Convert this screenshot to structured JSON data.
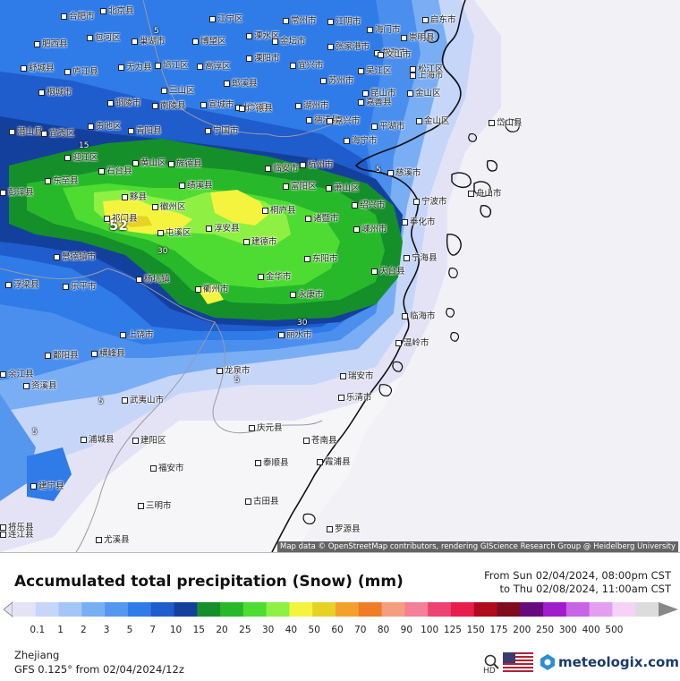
{
  "map": {
    "attribution": "Map data © OpenStreetMap contributors, rendering GIScience Research Group @ Heidelberg University",
    "max_value_label": "52",
    "contour_labels": [
      "5",
      "30",
      "30",
      "15",
      "5",
      "5",
      "5",
      "5"
    ],
    "cities": [
      {
        "name": "合肥市"
      },
      {
        "name": "北京县"
      },
      {
        "name": "江宁区"
      },
      {
        "name": "常州市"
      },
      {
        "name": "江阴市"
      },
      {
        "name": "海门市"
      },
      {
        "name": "启东市"
      },
      {
        "name": "肥西县"
      },
      {
        "name": "包河区"
      },
      {
        "name": "巢湖市"
      },
      {
        "name": "博望区"
      },
      {
        "name": "溧水区"
      },
      {
        "name": "金坛市"
      },
      {
        "name": "张家港市"
      },
      {
        "name": "常熟市"
      },
      {
        "name": "崇明县"
      },
      {
        "name": "舒城县"
      },
      {
        "name": "庐江县"
      },
      {
        "name": "无为县"
      },
      {
        "name": "鸠江区"
      },
      {
        "name": "高淳区"
      },
      {
        "name": "溧阳市"
      },
      {
        "name": "宜兴市"
      },
      {
        "name": "苏州市"
      },
      {
        "name": "昆山市"
      },
      {
        "name": "上海市"
      },
      {
        "name": "文山市"
      },
      {
        "name": "桐城市"
      },
      {
        "name": "三山区"
      },
      {
        "name": "郎溪县"
      },
      {
        "name": "长兴县"
      },
      {
        "name": "湖州市"
      },
      {
        "name": "吴江区"
      },
      {
        "name": "金山区"
      },
      {
        "name": "嘉善县"
      },
      {
        "name": "松江区"
      },
      {
        "name": "铜陵市"
      },
      {
        "name": "南陵县"
      },
      {
        "name": "宣城市"
      },
      {
        "name": "广德县"
      },
      {
        "name": "德清县"
      },
      {
        "name": "嘉兴市"
      },
      {
        "name": "平湖市"
      },
      {
        "name": "金山区"
      },
      {
        "name": "潜山县"
      },
      {
        "name": "宜秀区"
      },
      {
        "name": "贵池区"
      },
      {
        "name": "青阳县"
      },
      {
        "name": "宁国市"
      },
      {
        "name": "海宁市"
      },
      {
        "name": "岱山县"
      },
      {
        "name": "迎江区"
      },
      {
        "name": "石台县"
      },
      {
        "name": "黄山区"
      },
      {
        "name": "旌德县"
      },
      {
        "name": "临安市"
      },
      {
        "name": "杭州市"
      },
      {
        "name": "慈溪市"
      },
      {
        "name": "东至县"
      },
      {
        "name": "绩溪县"
      },
      {
        "name": "富阳区"
      },
      {
        "name": "萧山区"
      },
      {
        "name": "舟山市"
      },
      {
        "name": "彭泽县"
      },
      {
        "name": "黟县"
      },
      {
        "name": "徽州区"
      },
      {
        "name": "桐庐县"
      },
      {
        "name": "诸暨市"
      },
      {
        "name": "绍兴市"
      },
      {
        "name": "宁波市"
      },
      {
        "name": "祁门县"
      },
      {
        "name": "屯溪区"
      },
      {
        "name": "淳安县"
      },
      {
        "name": "嵊州市"
      },
      {
        "name": "奉化市"
      },
      {
        "name": "景德镇市"
      },
      {
        "name": "建德市"
      },
      {
        "name": "东阳市"
      },
      {
        "name": "宁海县"
      },
      {
        "name": "浮梁县"
      },
      {
        "name": "乐平市"
      },
      {
        "name": "杨坑镇"
      },
      {
        "name": "衢州市"
      },
      {
        "name": "金华市"
      },
      {
        "name": "天台县"
      },
      {
        "name": "永康市"
      },
      {
        "name": "临海市"
      },
      {
        "name": "上饶市"
      },
      {
        "name": "丽水市"
      },
      {
        "name": "鄱阳县"
      },
      {
        "name": "横峰县"
      },
      {
        "name": "温岭市"
      },
      {
        "name": "龙泉市"
      },
      {
        "name": "瑞安市"
      },
      {
        "name": "余江县"
      },
      {
        "name": "武夷山市"
      },
      {
        "name": "乐清市"
      },
      {
        "name": "资溪县"
      },
      {
        "name": "庆元县"
      },
      {
        "name": "泰顺县"
      },
      {
        "name": "浦城县"
      },
      {
        "name": "苍南县"
      },
      {
        "name": "建阳区"
      },
      {
        "name": "福安市"
      },
      {
        "name": "霞浦县"
      },
      {
        "name": "建宁县"
      },
      {
        "name": "古田县"
      },
      {
        "name": "罗源县"
      },
      {
        "name": "三明市"
      },
      {
        "name": "连江县"
      },
      {
        "name": "尤溪县"
      },
      {
        "name": "将乐县"
      }
    ]
  },
  "legend": {
    "title": "Accumulated total precipitation (Snow) (mm)",
    "from": "From Sun 02/04/2024, 08:00pm CST",
    "to": "to Thu 02/08/2024, 11:00am CST",
    "levels": [
      "0.1",
      "1",
      "2",
      "3",
      "5",
      "7",
      "10",
      "15",
      "20",
      "25",
      "30",
      "40",
      "50",
      "60",
      "70",
      "80",
      "90",
      "100",
      "125",
      "150",
      "175",
      "200",
      "250",
      "300",
      "400",
      "500"
    ],
    "colors": [
      "#e4e3f6",
      "#c5d6f9",
      "#a3c6f6",
      "#79aef4",
      "#5596ee",
      "#2f7be7",
      "#1f5ccc",
      "#14409d",
      "#148f2a",
      "#27b92a",
      "#4edc33",
      "#8ef043",
      "#f4f43f",
      "#e6d125",
      "#f3a12c",
      "#ef7c26",
      "#f59e7f",
      "#f47f96",
      "#ec4472",
      "#e71d4c",
      "#ae0b1d",
      "#7f0b1e",
      "#650c7c",
      "#a01ccd",
      "#c864e6",
      "#e39ef0",
      "#f5d3f6",
      "#dcdcdc"
    ]
  },
  "footer": {
    "region": "Zhejiang",
    "model": "GFS 0.125° from  02/04/2024/12z",
    "hd_label": "HD",
    "brand": "meteologix.com"
  }
}
